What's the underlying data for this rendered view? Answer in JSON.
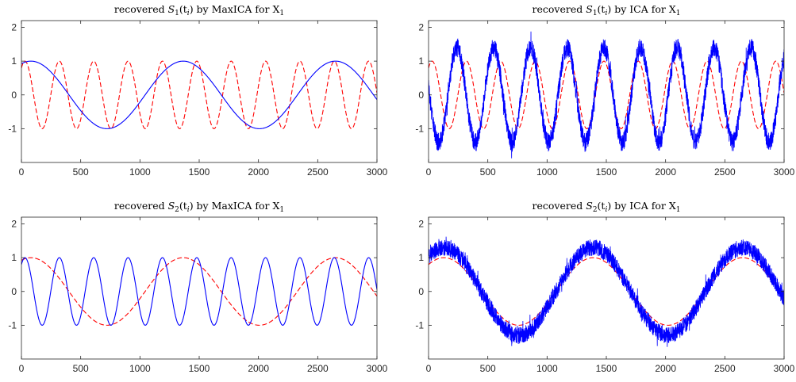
{
  "chart_data": [
    {
      "type": "line",
      "title_parts": {
        "pre": "recovered ",
        "sym": "S",
        "sub": "1",
        "arg_open": "(t",
        "arg_sub": "i",
        "arg_close": ")",
        "mid": " by MaxICA for X",
        "x_sub": "1"
      },
      "xlim": [
        0,
        3000
      ],
      "ylim": [
        -2,
        2.2
      ],
      "xticks": [
        "0",
        "500",
        "1000",
        "1500",
        "2000",
        "2500",
        "3000"
      ],
      "yticks": [
        "2",
        "1",
        "0",
        "-1"
      ],
      "series": [
        {
          "style": "dashed",
          "color": "#ff0000",
          "amplitude": 1,
          "period": 290,
          "phase_peak_x": 30,
          "noise": 0
        },
        {
          "style": "solid",
          "color": "#0000ff",
          "amplitude": 1,
          "period": 1285,
          "phase_peak_x": 80,
          "noise": 0
        }
      ]
    },
    {
      "type": "line",
      "title_parts": {
        "pre": "recovered ",
        "sym": "S",
        "sub": "1",
        "arg_open": "(t",
        "arg_sub": "i",
        "arg_close": ")",
        "mid": " by ICA for X",
        "x_sub": "1"
      },
      "xlim": [
        0,
        3000
      ],
      "ylim": [
        -2,
        2.2
      ],
      "xticks": [
        "0",
        "500",
        "1000",
        "1500",
        "2000",
        "2500",
        "3000"
      ],
      "yticks": [
        "2",
        "1",
        "0",
        "-1"
      ],
      "series": [
        {
          "style": "dashed",
          "color": "#ff0000",
          "amplitude": 1,
          "period": 290,
          "phase_peak_x": 30,
          "noise": 0
        },
        {
          "style": "solid",
          "color": "#0000ff",
          "amplitude": 1.4,
          "period": 310,
          "phase_peak_x": 240,
          "noise": 0.28
        }
      ]
    },
    {
      "type": "line",
      "title_parts": {
        "pre": "recovered ",
        "sym": "S",
        "sub": "2",
        "arg_open": "(t",
        "arg_sub": "i",
        "arg_close": ")",
        "mid": " by MaxICA for X",
        "x_sub": "1"
      },
      "xlim": [
        0,
        3000
      ],
      "ylim": [
        -2,
        2.2
      ],
      "xticks": [
        "0",
        "500",
        "1000",
        "1500",
        "2000",
        "2500",
        "3000"
      ],
      "yticks": [
        "2",
        "1",
        "0",
        "-1"
      ],
      "series": [
        {
          "style": "dashed",
          "color": "#ff0000",
          "amplitude": 1,
          "period": 1285,
          "phase_peak_x": 80,
          "noise": 0
        },
        {
          "style": "solid",
          "color": "#0000ff",
          "amplitude": 1,
          "period": 290,
          "phase_peak_x": 30,
          "noise": 0
        }
      ]
    },
    {
      "type": "line",
      "title_parts": {
        "pre": "recovered ",
        "sym": "S",
        "sub": "2",
        "arg_open": "(t",
        "arg_sub": "i",
        "arg_close": ")",
        "mid": " by ICA for X",
        "x_sub": "1"
      },
      "xlim": [
        0,
        3000
      ],
      "ylim": [
        -2,
        2.2
      ],
      "xticks": [
        "0",
        "500",
        "1000",
        "1500",
        "2000",
        "2500",
        "3000"
      ],
      "yticks": [
        "2",
        "1",
        "0",
        "-1"
      ],
      "series": [
        {
          "style": "dashed",
          "color": "#ff0000",
          "amplitude": 1,
          "period": 1260,
          "phase_peak_x": 130,
          "noise": 0
        },
        {
          "style": "solid",
          "color": "#0000ff",
          "amplitude": 1.3,
          "period": 1260,
          "phase_peak_x": 130,
          "noise": 0.25
        }
      ]
    }
  ]
}
